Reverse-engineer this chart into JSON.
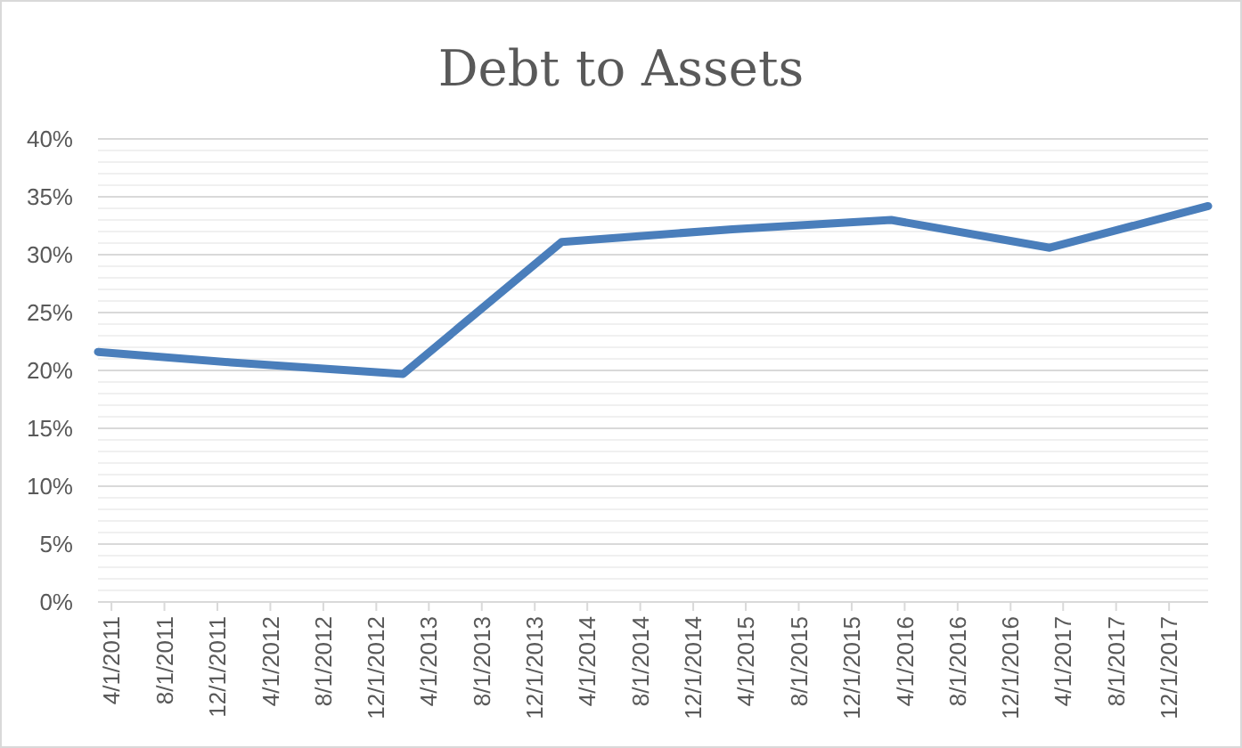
{
  "chart_data": {
    "type": "line",
    "title": "Debt to Assets",
    "x": [
      "2011-03",
      "2012-01",
      "2013-02",
      "2014-02",
      "2015-03",
      "2016-03",
      "2017-03",
      "2018-03"
    ],
    "series": [
      {
        "color": "#4a7ebb",
        "values": [
          21.6,
          20.7,
          19.7,
          31.1,
          32.2,
          33.0,
          30.6,
          34.2
        ]
      }
    ],
    "xlim": [
      "2011-03-01",
      "2018-03-01"
    ],
    "xticks": [
      {
        "value": "2011-04-01",
        "label": "4/1/2011"
      },
      {
        "value": "2011-08-01",
        "label": "8/1/2011"
      },
      {
        "value": "2011-12-01",
        "label": "12/1/2011"
      },
      {
        "value": "2012-04-01",
        "label": "4/1/2012"
      },
      {
        "value": "2012-08-01",
        "label": "8/1/2012"
      },
      {
        "value": "2012-12-01",
        "label": "12/1/2012"
      },
      {
        "value": "2013-04-01",
        "label": "4/1/2013"
      },
      {
        "value": "2013-08-01",
        "label": "8/1/2013"
      },
      {
        "value": "2013-12-01",
        "label": "12/1/2013"
      },
      {
        "value": "2014-04-01",
        "label": "4/1/2014"
      },
      {
        "value": "2014-08-01",
        "label": "8/1/2014"
      },
      {
        "value": "2014-12-01",
        "label": "12/1/2014"
      },
      {
        "value": "2015-04-01",
        "label": "4/1/2015"
      },
      {
        "value": "2015-08-01",
        "label": "8/1/2015"
      },
      {
        "value": "2015-12-01",
        "label": "12/1/2015"
      },
      {
        "value": "2016-04-01",
        "label": "4/1/2016"
      },
      {
        "value": "2016-08-01",
        "label": "8/1/2016"
      },
      {
        "value": "2016-12-01",
        "label": "12/1/2016"
      },
      {
        "value": "2017-04-01",
        "label": "4/1/2017"
      },
      {
        "value": "2017-08-01",
        "label": "8/1/2017"
      },
      {
        "value": "2017-12-01",
        "label": "12/1/2017"
      }
    ],
    "ylim": [
      0,
      40
    ],
    "yticks": [
      {
        "value": 0,
        "label": "0%"
      },
      {
        "value": 5,
        "label": "5%"
      },
      {
        "value": 10,
        "label": "10%"
      },
      {
        "value": 15,
        "label": "15%"
      },
      {
        "value": 20,
        "label": "20%"
      },
      {
        "value": 25,
        "label": "25%"
      },
      {
        "value": 30,
        "label": "30%"
      },
      {
        "value": 35,
        "label": "35%"
      },
      {
        "value": 40,
        "label": "40%"
      }
    ],
    "grid": "y",
    "line_style": "solid",
    "marker": "none"
  }
}
